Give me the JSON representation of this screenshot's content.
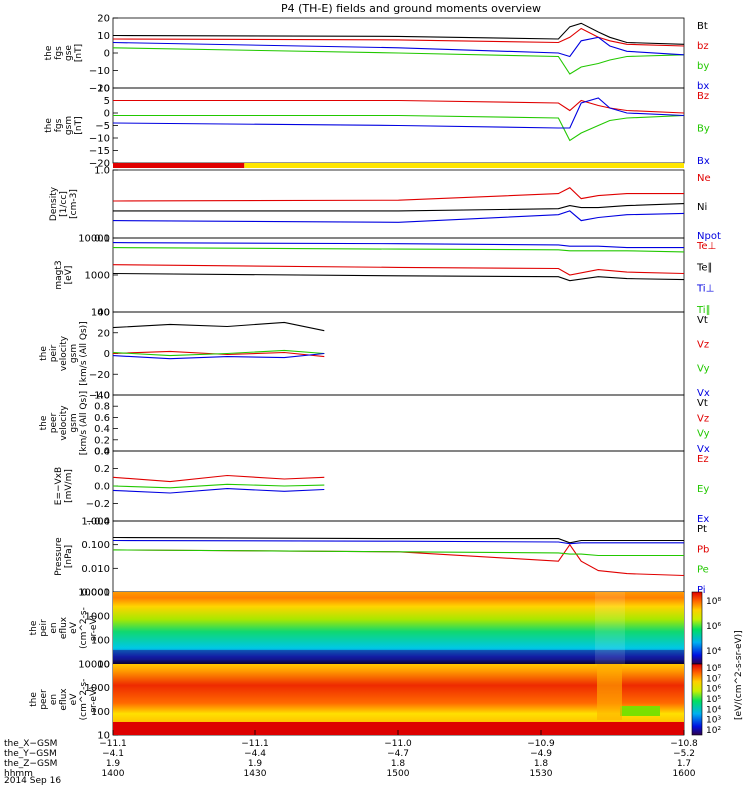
{
  "title": "P4 (TH-E) fields and ground moments overview",
  "colors": {
    "black": "#000000",
    "red": "#e00000",
    "green": "#22c800",
    "blue": "#0000e0",
    "yellow": "#ffe600"
  },
  "chart_data": [
    {
      "id": "fgs_gse",
      "type": "line",
      "ylabel": [
        "the",
        "fgs",
        "gse",
        "[nT]"
      ],
      "yticks": [
        "20",
        "10",
        "0",
        "−10",
        "−20"
      ],
      "ylim": [
        -20,
        20
      ],
      "x": [
        0,
        0.5,
        0.78,
        0.8,
        0.82,
        0.85,
        0.87,
        0.9,
        1.0
      ],
      "series": [
        {
          "name": "Bt",
          "color": "#000000",
          "values": [
            10,
            9.5,
            8,
            15,
            17,
            12,
            9,
            6,
            5
          ]
        },
        {
          "name": "bz",
          "color": "#e00000",
          "values": [
            8,
            7.5,
            6,
            9,
            14,
            9,
            7,
            5,
            4
          ]
        },
        {
          "name": "by",
          "color": "#22c800",
          "values": [
            3,
            0,
            -2,
            -12,
            -8,
            -6,
            -4,
            -2,
            -1
          ]
        },
        {
          "name": "bx",
          "color": "#0000e0",
          "values": [
            6,
            3,
            0,
            -2,
            7,
            9,
            4,
            1,
            -1
          ]
        }
      ]
    },
    {
      "id": "fgs_gsm",
      "type": "line",
      "ylabel": [
        "the",
        "fgs",
        "gsm",
        "[nT]"
      ],
      "yticks": [
        "10",
        "5",
        "0",
        "−5",
        "−10",
        "−15",
        "−20"
      ],
      "ylim": [
        -20,
        10
      ],
      "x": [
        0,
        0.5,
        0.78,
        0.8,
        0.82,
        0.85,
        0.87,
        0.9,
        1.0
      ],
      "series": [
        {
          "name": "Bz",
          "color": "#e00000",
          "values": [
            5,
            5,
            4,
            1,
            5,
            3,
            2,
            1,
            0
          ]
        },
        {
          "name": "By",
          "color": "#22c800",
          "values": [
            -1,
            -1,
            -2,
            -11,
            -8,
            -5,
            -3,
            -2,
            -1
          ]
        },
        {
          "name": "Bx",
          "color": "#0000e0",
          "values": [
            -4,
            -5,
            -6,
            -6,
            4,
            6,
            2,
            0,
            -1
          ]
        }
      ]
    },
    {
      "id": "density",
      "type": "line",
      "ylog": true,
      "ylabel": [
        "Density",
        "[1/cc]",
        "[cm-3]"
      ],
      "yticks": [
        "1.0",
        "0.1"
      ],
      "ylim": [
        0.1,
        1.0
      ],
      "x": [
        0,
        0.5,
        0.78,
        0.8,
        0.82,
        0.85,
        0.9,
        1.0
      ],
      "series": [
        {
          "name": "Ne",
          "color": "#e00000",
          "values": [
            0.35,
            0.36,
            0.45,
            0.55,
            0.38,
            0.42,
            0.45,
            0.45
          ]
        },
        {
          "name": "Ni",
          "color": "#000000",
          "values": [
            0.25,
            0.25,
            0.27,
            0.3,
            0.28,
            0.28,
            0.3,
            0.32
          ]
        },
        {
          "name": "Npot",
          "color": "#0000e0",
          "values": [
            0.18,
            0.17,
            0.22,
            0.25,
            0.18,
            0.2,
            0.22,
            0.23
          ]
        }
      ]
    },
    {
      "id": "temperature",
      "type": "line",
      "ylog": true,
      "ylabel": [
        "magt3",
        "[eV]"
      ],
      "yticks": [
        "10000",
        "1000",
        "100"
      ],
      "ylim": [
        100,
        10000
      ],
      "x": [
        0,
        0.5,
        0.78,
        0.8,
        0.85,
        0.9,
        1.0
      ],
      "series": [
        {
          "name": "Te⊥",
          "color": "#e00000",
          "values": [
            1900,
            1600,
            1500,
            1000,
            1400,
            1200,
            1100
          ]
        },
        {
          "name": "Te∥",
          "color": "#000000",
          "values": [
            1100,
            950,
            900,
            700,
            900,
            800,
            750
          ]
        },
        {
          "name": "Ti⊥",
          "color": "#0000e0",
          "values": [
            7500,
            7000,
            6500,
            6000,
            6000,
            5500,
            5500
          ]
        },
        {
          "name": "Ti∥",
          "color": "#22c800",
          "values": [
            5500,
            5000,
            4800,
            4500,
            4500,
            4500,
            4200
          ]
        }
      ]
    },
    {
      "id": "peir_velocity",
      "type": "line",
      "ylabel": [
        "the",
        "peir",
        "velocity",
        "gsm",
        "[km/s (All Qs)]"
      ],
      "yticks": [
        "40",
        "20",
        "0",
        "−20",
        "−40"
      ],
      "ylim": [
        -40,
        40
      ],
      "x": [
        0,
        0.1,
        0.2,
        0.3,
        0.37
      ],
      "series": [
        {
          "name": "Vt",
          "color": "#000000",
          "values": [
            25,
            28,
            26,
            30,
            22
          ]
        },
        {
          "name": "Vz",
          "color": "#e00000",
          "values": [
            0,
            2,
            -1,
            1,
            -3
          ]
        },
        {
          "name": "Vy",
          "color": "#22c800",
          "values": [
            1,
            -2,
            0,
            3,
            0
          ]
        },
        {
          "name": "Vx",
          "color": "#0000e0",
          "values": [
            -2,
            -5,
            -3,
            -4,
            0
          ]
        }
      ]
    },
    {
      "id": "peer_velocity",
      "type": "line",
      "ylabel": [
        "the",
        "peer",
        "velocity",
        "gsm",
        "[km/s (All Qs)]"
      ],
      "yticks": [
        "1.0",
        "0.8",
        "0.6",
        "0.4",
        "0.2",
        "0.0"
      ],
      "ylim": [
        0,
        1
      ],
      "x": [],
      "series": [
        {
          "name": "Vt",
          "color": "#000000",
          "values": []
        },
        {
          "name": "Vz",
          "color": "#e00000",
          "values": []
        },
        {
          "name": "Vy",
          "color": "#22c800",
          "values": []
        },
        {
          "name": "Vx",
          "color": "#0000e0",
          "values": []
        }
      ]
    },
    {
      "id": "efield",
      "type": "line",
      "ylabel": [
        "E=−VxB",
        "[mV/m]"
      ],
      "yticks": [
        "0.4",
        "0.2",
        "0.0",
        "−0.2",
        "−0.4"
      ],
      "ylim": [
        -0.4,
        0.4
      ],
      "x": [
        0,
        0.1,
        0.2,
        0.3,
        0.37
      ],
      "series": [
        {
          "name": "Ez",
          "color": "#e00000",
          "values": [
            0.1,
            0.05,
            0.12,
            0.08,
            0.1
          ]
        },
        {
          "name": "Ey",
          "color": "#22c800",
          "values": [
            0.0,
            -0.02,
            0.02,
            0.0,
            0.01
          ]
        },
        {
          "name": "Ex",
          "color": "#0000e0",
          "values": [
            -0.05,
            -0.08,
            -0.03,
            -0.06,
            -0.04
          ]
        }
      ]
    },
    {
      "id": "pressure",
      "type": "line",
      "ylog": true,
      "ylabel": [
        "Pressure",
        "[nPa]"
      ],
      "yticks": [
        "1.000",
        "0.100",
        "0.010",
        "0.001"
      ],
      "ylim": [
        0.001,
        1
      ],
      "x": [
        0,
        0.5,
        0.78,
        0.8,
        0.82,
        0.85,
        0.9,
        1.0
      ],
      "series": [
        {
          "name": "Pt",
          "color": "#000000",
          "values": [
            0.2,
            0.18,
            0.18,
            0.12,
            0.15,
            0.15,
            0.15,
            0.15
          ]
        },
        {
          "name": "Pb",
          "color": "#e00000",
          "values": [
            0.06,
            0.05,
            0.02,
            0.1,
            0.02,
            0.008,
            0.006,
            0.005
          ]
        },
        {
          "name": "Pe",
          "color": "#22c800",
          "values": [
            0.06,
            0.05,
            0.045,
            0.04,
            0.04,
            0.035,
            0.035,
            0.035
          ]
        },
        {
          "name": "Pi",
          "color": "#0000e0",
          "values": [
            0.15,
            0.14,
            0.13,
            0.11,
            0.12,
            0.12,
            0.12,
            0.12
          ]
        }
      ]
    },
    {
      "id": "peir_spec",
      "type": "heatmap",
      "ylabel": [
        "the",
        "peir",
        "en",
        "eflux",
        "eV",
        "(cm^2-s-",
        "sr-eV)"
      ],
      "yticks": [
        "10000",
        "1000",
        "100",
        "10"
      ]
    },
    {
      "id": "peer_spec",
      "type": "heatmap",
      "ylabel": [
        "the",
        "peer",
        "en",
        "eflux",
        "eV",
        "(cm^2-s-",
        "sr-eV)"
      ],
      "yticks": [
        "10000",
        "1000",
        "100",
        "10"
      ]
    }
  ],
  "colorbar": {
    "label": "[eV/(cm^2-s-sr-eV)]",
    "top_ticks": [
      "10⁸",
      "10⁶",
      "10⁴"
    ],
    "bottom_ticks": [
      "10⁸",
      "10⁷",
      "10⁶",
      "10⁵",
      "10⁴",
      "10³",
      "10²"
    ]
  },
  "mode_bar": {
    "red_fraction": 0.23
  },
  "xaxis": {
    "rows": [
      {
        "label": "the_X−GSM",
        "values": [
          "−11.1",
          "−11.1",
          "−11.0",
          "−10.9",
          "−10.8"
        ]
      },
      {
        "label": "the_Y−GSM",
        "values": [
          "−4.1",
          "−4.4",
          "−4.7",
          "−4.9",
          "−5.2"
        ]
      },
      {
        "label": "the_Z−GSM",
        "values": [
          "1.9",
          "1.9",
          "1.8",
          "1.8",
          "1.7"
        ]
      },
      {
        "label": "hhmm",
        "values": [
          "1400",
          "1430",
          "1500",
          "1530",
          "1600"
        ]
      }
    ],
    "date": "2014 Sep 16"
  }
}
